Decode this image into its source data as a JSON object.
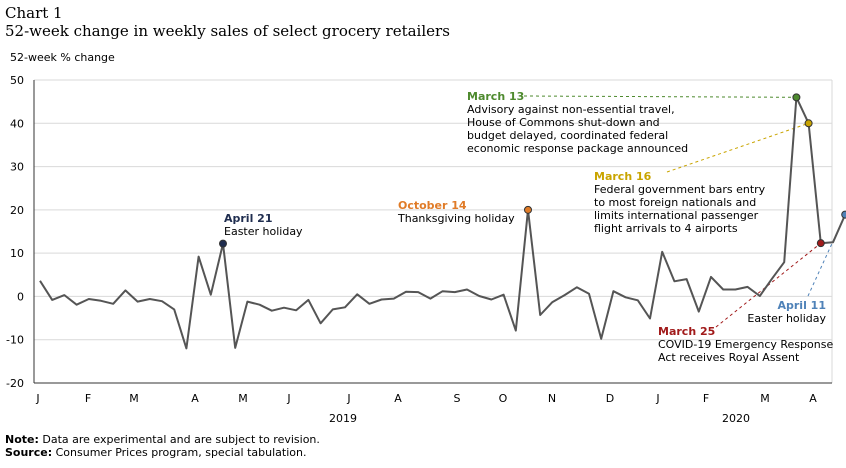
{
  "header": {
    "label": "Chart 1",
    "title": "52-week change in weekly sales of select grocery retailers"
  },
  "chart_data": {
    "type": "line",
    "ylabel": "52-week % change",
    "ylim": [
      -20,
      50
    ],
    "yticks": [
      -20,
      -10,
      0,
      10,
      20,
      30,
      40,
      50
    ],
    "grid": true,
    "months": [
      "J",
      "F",
      "M",
      "A",
      "M",
      "J",
      "J",
      "A",
      "S",
      "O",
      "N",
      "D",
      "J",
      "F",
      "M",
      "A"
    ],
    "years": [
      "2019",
      "2020"
    ],
    "series": [
      {
        "color": "#555555",
        "values": [
          3.6,
          -0.8,
          0.3,
          -1.9,
          -0.6,
          -1.0,
          -1.7,
          1.4,
          -1.2,
          -0.6,
          -1.1,
          -3.0,
          -12.0,
          9.2,
          0.4,
          12.2,
          -11.9,
          -1.2,
          -1.9,
          -3.3,
          -2.6,
          -3.2,
          -0.8,
          -6.2,
          -3.0,
          -2.5,
          0.5,
          -1.7,
          -0.7,
          -0.5,
          1.1,
          1.0,
          -0.5,
          1.2,
          1.0,
          1.6,
          0.1,
          -0.7,
          0.4,
          -7.9,
          20.0,
          -4.3,
          -1.3,
          0.3,
          2.1,
          0.6,
          -9.8,
          1.2,
          -0.2,
          -0.9,
          -5.1,
          10.3,
          3.5,
          4.0,
          -3.5,
          4.5,
          1.6,
          1.6,
          2.2,
          0.1,
          4.1,
          7.9,
          46.0,
          40.0,
          12.3,
          12.5,
          18.9
        ]
      }
    ],
    "annotations": [
      {
        "date": "April 21",
        "lines": [
          "Easter holiday"
        ],
        "color": "#1f2d4f"
      },
      {
        "date": "October 14",
        "lines": [
          "Thanksgiving holiday"
        ],
        "color": "#e07b27"
      },
      {
        "date": "March 13",
        "lines": [
          "Advisory against non-essential travel,",
          "House of Commons shut-down and",
          "budget delayed, coordinated federal",
          "economic response package announced"
        ],
        "color": "#4e8a2e"
      },
      {
        "date": "March 16",
        "lines": [
          "Federal government bars entry",
          "to most foreign nationals and",
          "limits international passenger",
          "flight arrivals to 4 airports"
        ],
        "color": "#c9a400"
      },
      {
        "date": "April 11",
        "lines": [
          "Easter holiday"
        ],
        "color": "#4f82b8"
      },
      {
        "date": "March 25",
        "lines": [
          "COVID-19 Emergency Response",
          "Act receives Royal Assent"
        ],
        "color": "#a11a1a"
      }
    ]
  },
  "footer": {
    "note_label": "Note:",
    "note_text": " Data are experimental and are subject to revision.",
    "source_label": "Source:",
    "source_text": " Consumer Prices program, special tabulation."
  }
}
